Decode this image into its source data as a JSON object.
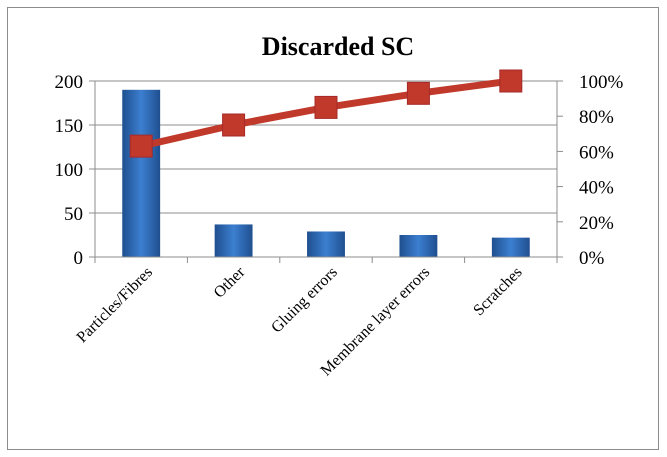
{
  "chart_data": {
    "type": "bar",
    "title": "Discarded SC",
    "categories": [
      "Particles/Fibres",
      "Other",
      "Gluing errors",
      "Membrane layer errors",
      "Scratches"
    ],
    "series": [
      {
        "type": "bar",
        "values": [
          190,
          37,
          29,
          25,
          22
        ],
        "color": "#2f6bb5"
      },
      {
        "type": "line",
        "axis": "right",
        "values": [
          63,
          75,
          85,
          93,
          100
        ],
        "color": "#c0392b"
      }
    ],
    "y_left": {
      "range": [
        0,
        200
      ],
      "ticks": [
        "0",
        "50",
        "100",
        "150",
        "200"
      ]
    },
    "y_right": {
      "range": [
        0,
        100
      ],
      "ticks": [
        "0%",
        "20%",
        "40%",
        "60%",
        "80%",
        "100%"
      ]
    },
    "grid": true,
    "legend": "none"
  }
}
